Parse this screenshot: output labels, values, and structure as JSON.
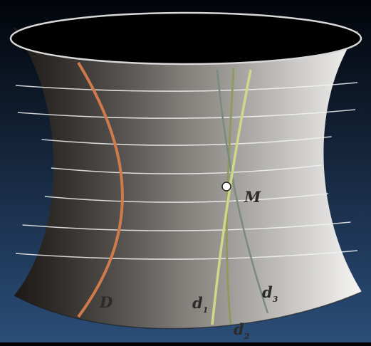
{
  "colors": {
    "background_top": "#020409",
    "background_bottom": "#2b4d78",
    "surface_dark": "#2a2522",
    "surface_light": "#f6f6f5",
    "rim_stroke": "#0b0b0b",
    "parallel_line": "#f2f2f2",
    "curve_D": "#cf7a4b",
    "curve_d1": "#cfd889",
    "curve_d2": "#8f9a62",
    "curve_d3": "#7b8a7a",
    "point_M": "#ffffff"
  },
  "labels": {
    "M": "M",
    "D": "D",
    "d1_base": "d",
    "d1_sub": "1",
    "d2_base": "d",
    "d2_sub": "2",
    "d3_base": "d",
    "d3_sub": "3"
  }
}
